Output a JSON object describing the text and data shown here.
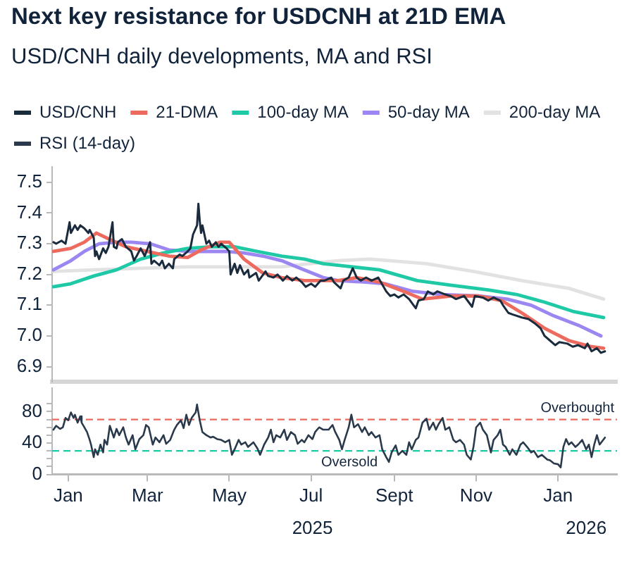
{
  "chart_data": [
    {
      "type": "line",
      "title": "Next key resistance for USDCNH at 21D EMA",
      "subtitle": "USD/CNH daily developments, MA and RSI",
      "legend": "top left",
      "marker": "none",
      "tick_labels": "y",
      "xlim": [
        "2024-12-20",
        "2026-02-14"
      ],
      "ylim": [
        6.85,
        7.55
      ],
      "yticks": [
        6.9,
        {
          "value": 7,
          "label": "7.0"
        },
        7.1,
        7.2,
        7.3,
        7.4,
        7.5
      ],
      "series": [
        {
          "name": "USD/CNH",
          "color": "#1a2b3d",
          "x": [
            "2024-12-21",
            "2024-12-23",
            "2024-12-27",
            "2024-12-30",
            "2025-01-02",
            "2025-01-03",
            "2025-01-06",
            "2025-01-08",
            "2025-01-10",
            "2025-01-13",
            "2025-01-16",
            "2025-01-17",
            "2025-01-20",
            "2025-01-21",
            "2025-01-22",
            "2025-01-24",
            "2025-01-27",
            "2025-01-29",
            "2025-01-31",
            "2025-02-03",
            "2025-02-04",
            "2025-02-06",
            "2025-02-07",
            "2025-02-10",
            "2025-02-13",
            "2025-02-17",
            "2025-02-19",
            "2025-02-21",
            "2025-02-24",
            "2025-02-27",
            "2025-03-03",
            "2025-03-04",
            "2025-03-06",
            "2025-03-10",
            "2025-03-12",
            "2025-03-14",
            "2025-03-17",
            "2025-03-20",
            "2025-03-21",
            "2025-03-25",
            "2025-03-27",
            "2025-03-31",
            "2025-04-02",
            "2025-04-04",
            "2025-04-07",
            "2025-04-08",
            "2025-04-09",
            "2025-04-10",
            "2025-04-11",
            "2025-04-14",
            "2025-04-16",
            "2025-04-18",
            "2025-04-21",
            "2025-04-23",
            "2025-04-25",
            "2025-04-29",
            "2025-05-01",
            "2025-05-02",
            "2025-05-05",
            "2025-05-07",
            "2025-05-09",
            "2025-05-12",
            "2025-05-15",
            "2025-05-16",
            "2025-05-21",
            "2025-05-23",
            "2025-05-28",
            "2025-05-30",
            "2025-06-03",
            "2025-06-06",
            "2025-06-10",
            "2025-06-13",
            "2025-06-17",
            "2025-06-20",
            "2025-06-24",
            "2025-06-27",
            "2025-07-01",
            "2025-07-04",
            "2025-07-08",
            "2025-07-11",
            "2025-07-16",
            "2025-07-18",
            "2025-07-23",
            "2025-07-25",
            "2025-07-29",
            "2025-08-01",
            "2025-08-04",
            "2025-08-07",
            "2025-08-11",
            "2025-08-15",
            "2025-08-20",
            "2025-08-22",
            "2025-08-26",
            "2025-08-29",
            "2025-09-01",
            "2025-09-04",
            "2025-09-08",
            "2025-09-12",
            "2025-09-17",
            "2025-09-19",
            "2025-09-23",
            "2025-09-26",
            "2025-09-30",
            "2025-10-03",
            "2025-10-09",
            "2025-10-13",
            "2025-10-17",
            "2025-10-23",
            "2025-10-29",
            "2025-10-31",
            "2025-11-06",
            "2025-11-10",
            "2025-11-14",
            "2025-11-19",
            "2025-11-21",
            "2025-11-25",
            "2025-11-28",
            "2025-12-05",
            "2025-12-10",
            "2025-12-15",
            "2025-12-19",
            "2025-12-22",
            "2025-12-26",
            "2025-12-30",
            "2026-01-02",
            "2026-01-08",
            "2026-01-12",
            "2026-01-16",
            "2026-01-21",
            "2026-01-23",
            "2026-01-26",
            "2026-01-30",
            "2026-02-02",
            "2026-02-05"
          ],
          "values": [
            7.305,
            7.3,
            7.31,
            7.3,
            7.37,
            7.335,
            7.36,
            7.345,
            7.36,
            7.35,
            7.335,
            7.345,
            7.32,
            7.26,
            7.275,
            7.25,
            7.285,
            7.27,
            7.29,
            7.37,
            7.29,
            7.285,
            7.305,
            7.315,
            7.29,
            7.275,
            7.245,
            7.26,
            7.285,
            7.26,
            7.305,
            7.235,
            7.245,
            7.23,
            7.245,
            7.22,
            7.235,
            7.22,
            7.25,
            7.265,
            7.26,
            7.275,
            7.285,
            7.33,
            7.36,
            7.43,
            7.375,
            7.335,
            7.36,
            7.3,
            7.31,
            7.29,
            7.305,
            7.29,
            7.3,
            7.285,
            7.275,
            7.2,
            7.235,
            7.205,
            7.23,
            7.2,
            7.215,
            7.19,
            7.205,
            7.18,
            7.21,
            7.195,
            7.19,
            7.2,
            7.18,
            7.195,
            7.18,
            7.19,
            7.175,
            7.16,
            7.17,
            7.16,
            7.18,
            7.18,
            7.19,
            7.175,
            7.155,
            7.18,
            7.19,
            7.22,
            7.19,
            7.18,
            7.19,
            7.18,
            7.19,
            7.175,
            7.145,
            7.13,
            7.135,
            7.125,
            7.135,
            7.12,
            7.09,
            7.115,
            7.12,
            7.145,
            7.135,
            7.145,
            7.135,
            7.13,
            7.12,
            7.13,
            7.095,
            7.13,
            7.125,
            7.115,
            7.125,
            7.115,
            7.1,
            7.075,
            7.07,
            7.06,
            7.055,
            7.04,
            7.025,
            7.0,
            6.985,
            6.97,
            6.98,
            6.975,
            6.965,
            6.97,
            6.96,
            6.975,
            6.95,
            6.96,
            6.945,
            6.95
          ]
        },
        {
          "name": "21-DMA",
          "color": "#ec6b5e",
          "x": [
            "2024-12-21",
            "2025-01-03",
            "2025-01-13",
            "2025-01-22",
            "2025-02-03",
            "2025-02-13",
            "2025-02-24",
            "2025-03-06",
            "2025-03-17",
            "2025-03-31",
            "2025-04-10",
            "2025-04-24",
            "2025-05-01",
            "2025-05-12",
            "2025-05-26",
            "2025-06-09",
            "2025-06-26",
            "2025-07-21",
            "2025-08-04",
            "2025-08-21",
            "2025-09-08",
            "2025-09-22",
            "2025-10-13",
            "2025-11-03",
            "2025-11-20",
            "2025-12-05",
            "2025-12-22",
            "2026-01-09",
            "2026-01-26",
            "2026-02-04"
          ],
          "values": [
            7.275,
            7.285,
            7.305,
            7.335,
            7.31,
            7.29,
            7.28,
            7.27,
            7.26,
            7.255,
            7.28,
            7.305,
            7.305,
            7.25,
            7.205,
            7.19,
            7.18,
            7.18,
            7.19,
            7.175,
            7.145,
            7.12,
            7.13,
            7.13,
            7.115,
            7.075,
            7.025,
            6.985,
            6.965,
            6.96
          ]
        },
        {
          "name": "100-day MA",
          "color": "#1fc9a6",
          "x": [
            "2024-12-21",
            "2025-01-03",
            "2025-01-20",
            "2025-02-06",
            "2025-02-24",
            "2025-03-13",
            "2025-03-31",
            "2025-04-17",
            "2025-05-05",
            "2025-05-22",
            "2025-06-09",
            "2025-06-26",
            "2025-07-10",
            "2025-07-21",
            "2025-08-21",
            "2025-09-18",
            "2025-10-13",
            "2025-11-10",
            "2025-12-01",
            "2025-12-22",
            "2026-01-12",
            "2026-02-04"
          ],
          "values": [
            7.16,
            7.17,
            7.195,
            7.215,
            7.25,
            7.27,
            7.285,
            7.29,
            7.29,
            7.275,
            7.26,
            7.25,
            7.235,
            7.23,
            7.215,
            7.18,
            7.165,
            7.15,
            7.135,
            7.11,
            7.08,
            7.06
          ]
        },
        {
          "name": "50-day MA",
          "color": "#9c86f2",
          "x": [
            "2024-12-21",
            "2025-01-03",
            "2025-01-13",
            "2025-01-24",
            "2025-02-06",
            "2025-02-17",
            "2025-03-03",
            "2025-03-17",
            "2025-03-31",
            "2025-04-14",
            "2025-04-28",
            "2025-05-12",
            "2025-05-26",
            "2025-06-09",
            "2025-06-23",
            "2025-07-10",
            "2025-07-21",
            "2025-08-11",
            "2025-08-25",
            "2025-09-15",
            "2025-10-06",
            "2025-11-03",
            "2025-11-24",
            "2025-12-12",
            "2025-12-29",
            "2026-01-16",
            "2026-02-02"
          ],
          "values": [
            7.215,
            7.245,
            7.275,
            7.3,
            7.305,
            7.305,
            7.3,
            7.28,
            7.275,
            7.275,
            7.275,
            7.27,
            7.26,
            7.245,
            7.22,
            7.19,
            7.18,
            7.175,
            7.17,
            7.145,
            7.135,
            7.13,
            7.12,
            7.1,
            7.065,
            7.035,
            7.0
          ]
        },
        {
          "name": "200-day MA",
          "color": "#e2e2e2",
          "x": [
            "2024-12-21",
            "2025-01-20",
            "2025-02-24",
            "2025-03-31",
            "2025-05-05",
            "2025-06-09",
            "2025-06-30",
            "2025-07-21",
            "2025-08-14",
            "2025-09-25",
            "2025-10-30",
            "2025-12-05",
            "2026-01-09",
            "2026-02-04"
          ],
          "values": [
            7.21,
            7.215,
            7.22,
            7.225,
            7.225,
            7.225,
            7.235,
            7.245,
            7.25,
            7.235,
            7.21,
            7.18,
            7.155,
            7.12
          ]
        }
      ]
    },
    {
      "type": "line",
      "legend": "top left",
      "marker": "none",
      "xlim": [
        "2024-12-20",
        "2026-02-14"
      ],
      "xticks": [
        {
          "value": "2025-01-01",
          "label": "Jan"
        },
        {
          "value": "2025-03-01",
          "label": "Mar"
        },
        {
          "value": "2025-05-01",
          "label": "May"
        },
        {
          "value": "2025-07-01",
          "label": "Jul"
        },
        {
          "value": "2025-09-01",
          "label": "Sept"
        },
        {
          "value": "2025-11-01",
          "label": "Nov"
        },
        {
          "value": "2026-01-01",
          "label": "Jan"
        }
      ],
      "x2lim": [
        "2024-12-20",
        "2026-02-14"
      ],
      "x2ticks": [
        {
          "value": "2025-07-02",
          "label": "2025"
        },
        {
          "value": "2026-01-22",
          "label": "2026"
        }
      ],
      "ylim": [
        0,
        110
      ],
      "yticks": [
        0,
        {
          "value": 10,
          "label": null
        },
        {
          "value": 20,
          "label": null
        },
        {
          "value": 30,
          "label": null
        },
        40,
        {
          "value": 50,
          "label": null
        },
        {
          "value": 60,
          "label": null
        },
        {
          "value": 70,
          "label": null
        },
        80,
        {
          "value": 90,
          "label": null
        }
      ],
      "ref_lines": [
        {
          "axis": "y",
          "value": 70,
          "label": "Overbought",
          "color": "#ec6b5e",
          "line_style": "dashed"
        },
        {
          "axis": "y",
          "value": 30,
          "label": "Oversold",
          "color": "#1fc9a6",
          "line_style": "dashed"
        }
      ],
      "series": [
        {
          "name": "RSI (14-day)",
          "color": "#2a3a4c",
          "x": [
            "2024-12-21",
            "2024-12-23",
            "2024-12-26",
            "2024-12-28",
            "2024-12-30",
            "2025-01-01",
            "2025-01-03",
            "2025-01-05",
            "2025-01-06",
            "2025-01-08",
            "2025-01-10",
            "2025-01-11",
            "2025-01-13",
            "2025-01-15",
            "2025-01-17",
            "2025-01-18",
            "2025-01-20",
            "2025-01-21",
            "2025-01-23",
            "2025-01-25",
            "2025-01-27",
            "2025-01-28",
            "2025-01-30",
            "2025-02-01",
            "2025-02-04",
            "2025-02-06",
            "2025-02-08",
            "2025-02-11",
            "2025-02-13",
            "2025-02-15",
            "2025-02-18",
            "2025-02-20",
            "2025-02-23",
            "2025-02-26",
            "2025-02-28",
            "2025-03-02",
            "2025-03-05",
            "2025-03-07",
            "2025-03-10",
            "2025-03-13",
            "2025-03-15",
            "2025-03-18",
            "2025-03-21",
            "2025-03-23",
            "2025-03-26",
            "2025-03-28",
            "2025-03-30",
            "2025-04-01",
            "2025-04-03",
            "2025-04-06",
            "2025-04-07",
            "2025-04-09",
            "2025-04-11",
            "2025-04-14",
            "2025-04-17",
            "2025-04-19",
            "2025-04-22",
            "2025-04-25",
            "2025-04-28",
            "2025-05-01",
            "2025-05-03",
            "2025-05-05",
            "2025-05-08",
            "2025-05-10",
            "2025-05-13",
            "2025-05-15",
            "2025-05-19",
            "2025-05-22",
            "2025-05-24",
            "2025-05-27",
            "2025-05-30",
            "2025-06-01",
            "2025-06-03",
            "2025-06-05",
            "2025-06-08",
            "2025-06-11",
            "2025-06-13",
            "2025-06-16",
            "2025-06-19",
            "2025-06-21",
            "2025-06-24",
            "2025-06-26",
            "2025-06-29",
            "2025-07-02",
            "2025-07-04",
            "2025-07-07",
            "2025-07-10",
            "2025-07-14",
            "2025-07-17",
            "2025-07-19",
            "2025-07-22",
            "2025-07-24",
            "2025-07-26",
            "2025-07-29",
            "2025-07-31",
            "2025-08-02",
            "2025-08-05",
            "2025-08-08",
            "2025-08-10",
            "2025-08-13",
            "2025-08-15",
            "2025-08-18",
            "2025-08-21",
            "2025-08-23",
            "2025-08-26",
            "2025-08-28",
            "2025-08-30",
            "2025-09-02",
            "2025-09-04",
            "2025-09-07",
            "2025-09-10",
            "2025-09-12",
            "2025-09-14",
            "2025-09-17",
            "2025-09-19",
            "2025-09-22",
            "2025-09-25",
            "2025-09-27",
            "2025-09-30",
            "2025-10-02",
            "2025-10-04",
            "2025-10-07",
            "2025-10-09",
            "2025-10-12",
            "2025-10-15",
            "2025-10-17",
            "2025-10-20",
            "2025-10-23",
            "2025-10-25",
            "2025-10-28",
            "2025-10-30",
            "2025-11-01",
            "2025-11-04",
            "2025-11-06",
            "2025-11-09",
            "2025-11-12",
            "2025-11-14",
            "2025-11-17",
            "2025-11-19",
            "2025-11-21",
            "2025-11-23",
            "2025-11-26",
            "2025-11-28",
            "2025-12-01",
            "2025-12-04",
            "2025-12-06",
            "2025-12-09",
            "2025-12-12",
            "2025-12-14",
            "2025-12-17",
            "2025-12-20",
            "2025-12-24",
            "2025-12-26",
            "2025-12-29",
            "2026-01-01",
            "2026-01-03",
            "2026-01-05",
            "2026-01-07",
            "2026-01-09",
            "2026-01-11",
            "2026-01-14",
            "2026-01-16",
            "2026-01-19",
            "2026-01-22",
            "2026-01-24",
            "2026-01-26",
            "2026-01-28",
            "2026-01-30",
            "2026-02-01",
            "2026-02-05"
          ],
          "values": [
            57,
            62,
            58,
            60,
            72,
            69,
            79,
            72,
            76,
            66,
            74,
            66,
            60,
            54,
            44,
            38,
            22,
            32,
            25,
            38,
            28,
            44,
            38,
            62,
            47,
            58,
            50,
            60,
            47,
            38,
            50,
            32,
            45,
            50,
            63,
            60,
            38,
            47,
            41,
            50,
            39,
            44,
            57,
            63,
            69,
            59,
            76,
            63,
            72,
            79,
            89,
            69,
            54,
            50,
            47,
            48,
            45,
            44,
            41,
            44,
            25,
            32,
            44,
            38,
            41,
            35,
            41,
            33,
            25,
            38,
            47,
            57,
            41,
            50,
            47,
            57,
            44,
            54,
            50,
            39,
            44,
            41,
            50,
            45,
            54,
            60,
            57,
            57,
            63,
            54,
            44,
            32,
            44,
            60,
            76,
            60,
            64,
            54,
            60,
            50,
            54,
            47,
            50,
            32,
            22,
            16,
            28,
            37,
            25,
            30,
            25,
            41,
            32,
            44,
            47,
            66,
            71,
            57,
            66,
            57,
            64,
            72,
            57,
            60,
            44,
            41,
            44,
            38,
            25,
            19,
            35,
            60,
            66,
            57,
            50,
            28,
            44,
            50,
            57,
            38,
            35,
            25,
            32,
            25,
            38,
            41,
            35,
            28,
            30,
            22,
            25,
            19,
            18,
            14,
            13,
            9,
            35,
            45,
            38,
            41,
            35,
            38,
            44,
            32,
            38,
            22,
            38,
            50,
            38,
            47
          ]
        }
      ]
    }
  ]
}
